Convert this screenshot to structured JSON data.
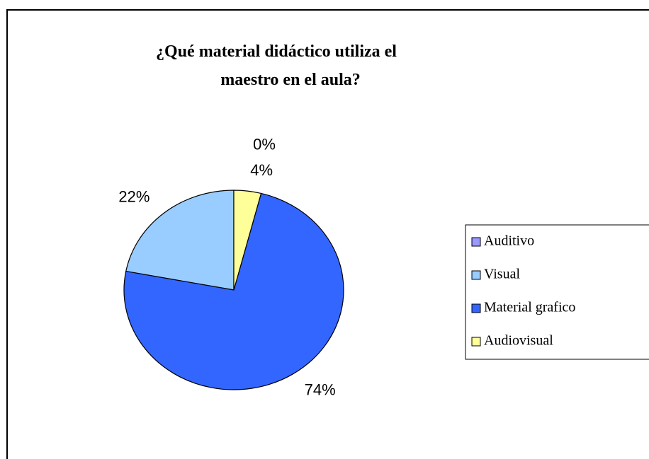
{
  "chart_data": {
    "type": "pie",
    "title": [
      "¿Qué material didáctico utiliza el",
      "maestro en el aula?"
    ],
    "categories": [
      "Auditivo",
      "Visual",
      "Material grafico",
      "Audiovisual"
    ],
    "values": [
      0,
      22,
      74,
      4
    ],
    "value_labels": [
      "0%",
      "22%",
      "74%",
      "4%"
    ],
    "colors": [
      "#9999ff",
      "#99ccff",
      "#3366ff",
      "#ffff99"
    ],
    "legend": "right"
  }
}
